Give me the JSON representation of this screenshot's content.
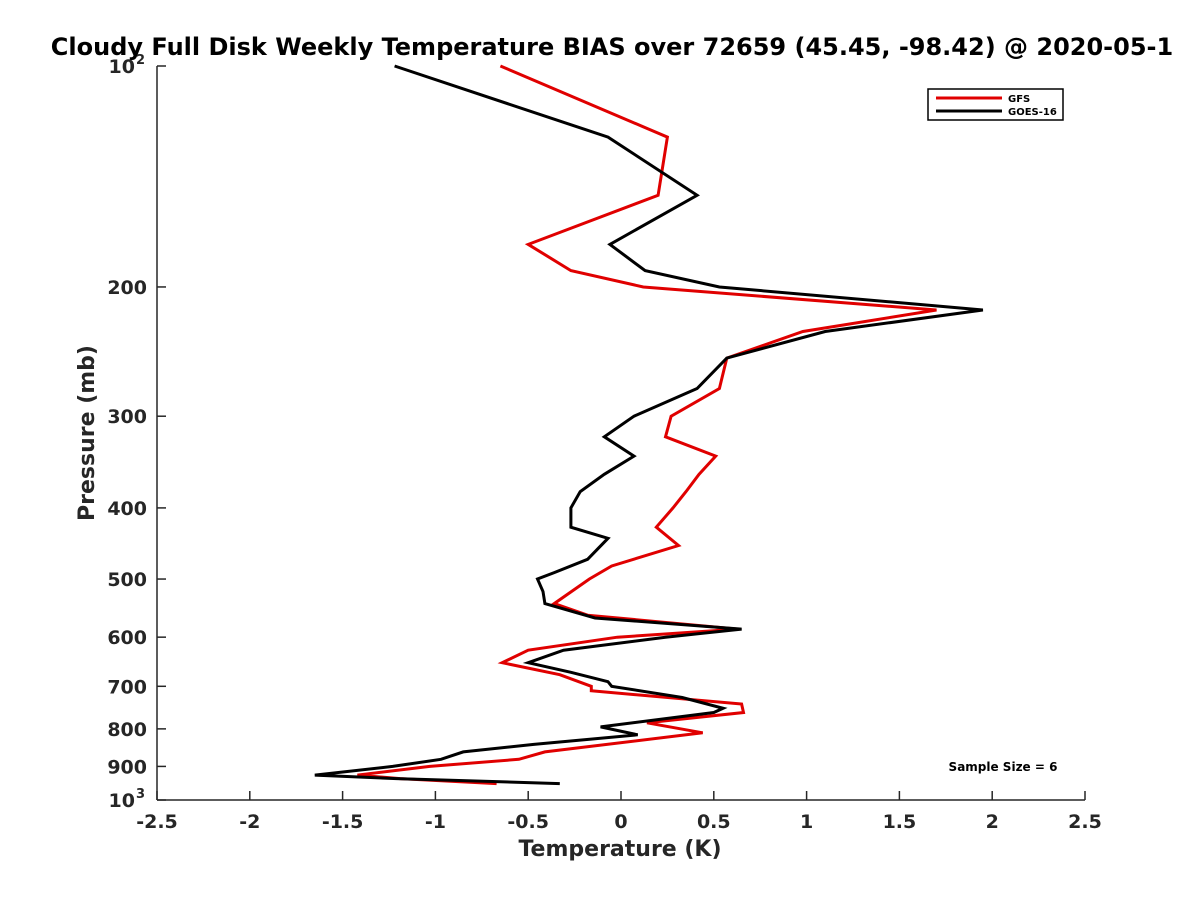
{
  "chart_data": {
    "type": "line",
    "title": "Cloudy Full Disk Weekly Temperature BIAS over 72659 (45.45, -98.42) @ 2020-05-1",
    "xlabel": "Temperature (K)",
    "ylabel": "Pressure (mb)",
    "xlim": [
      -2.5,
      2.5
    ],
    "ylim": [
      100,
      1000
    ],
    "y_scale": "log",
    "y_reversed": true,
    "grid": false,
    "legend_position": "top-right",
    "x_ticks": [
      {
        "value": -2.5,
        "label": "-2.5"
      },
      {
        "value": -2,
        "label": "-2"
      },
      {
        "value": -1.5,
        "label": "-1.5"
      },
      {
        "value": -1,
        "label": "-1"
      },
      {
        "value": -0.5,
        "label": "-0.5"
      },
      {
        "value": 0,
        "label": "0"
      },
      {
        "value": 0.5,
        "label": "0.5"
      },
      {
        "value": 1,
        "label": "1"
      },
      {
        "value": 1.5,
        "label": "1.5"
      },
      {
        "value": 2,
        "label": "2"
      },
      {
        "value": 2.5,
        "label": "2.5"
      }
    ],
    "y_ticks": [
      {
        "value": 100,
        "base": "10",
        "exp": "2"
      },
      {
        "value": 200,
        "label": "200"
      },
      {
        "value": 300,
        "label": "300"
      },
      {
        "value": 400,
        "label": "400"
      },
      {
        "value": 500,
        "label": "500"
      },
      {
        "value": 600,
        "label": "600"
      },
      {
        "value": 700,
        "label": "700"
      },
      {
        "value": 800,
        "label": "800"
      },
      {
        "value": 900,
        "label": "900"
      },
      {
        "value": 1000,
        "base": "10",
        "exp": "3"
      }
    ],
    "annotation": "Sample Size = 6",
    "series": [
      {
        "name": "GFS",
        "color": "#e00000",
        "points": [
          [
            -0.65,
            100
          ],
          [
            0.25,
            125
          ],
          [
            0.2,
            150
          ],
          [
            -0.5,
            175
          ],
          [
            -0.27,
            190
          ],
          [
            0.12,
            200
          ],
          [
            1.7,
            215
          ],
          [
            0.98,
            230
          ],
          [
            0.57,
            250
          ],
          [
            0.53,
            275
          ],
          [
            0.27,
            300
          ],
          [
            0.24,
            320
          ],
          [
            0.51,
            340
          ],
          [
            0.42,
            360
          ],
          [
            0.35,
            380
          ],
          [
            0.28,
            400
          ],
          [
            0.19,
            425
          ],
          [
            0.31,
            450
          ],
          [
            -0.05,
            480
          ],
          [
            -0.17,
            500
          ],
          [
            -0.36,
            540
          ],
          [
            -0.18,
            560
          ],
          [
            0.63,
            585
          ],
          [
            -0.02,
            600
          ],
          [
            -0.5,
            625
          ],
          [
            -0.64,
            650
          ],
          [
            -0.33,
            675
          ],
          [
            -0.16,
            700
          ],
          [
            -0.16,
            710
          ],
          [
            0.65,
            740
          ],
          [
            0.66,
            760
          ],
          [
            0.14,
            785
          ],
          [
            0.44,
            810
          ],
          [
            -0.41,
            860
          ],
          [
            -0.55,
            880
          ],
          [
            -1.03,
            900
          ],
          [
            -1.42,
            925
          ],
          [
            -1.19,
            935
          ],
          [
            -0.67,
            950
          ]
        ]
      },
      {
        "name": "GOES-16",
        "color": "#000000",
        "points": [
          [
            -1.22,
            100
          ],
          [
            -0.07,
            125
          ],
          [
            0.41,
            150
          ],
          [
            -0.06,
            175
          ],
          [
            0.13,
            190
          ],
          [
            0.53,
            200
          ],
          [
            1.95,
            215
          ],
          [
            1.1,
            230
          ],
          [
            0.57,
            250
          ],
          [
            0.41,
            275
          ],
          [
            0.07,
            300
          ],
          [
            -0.09,
            320
          ],
          [
            0.07,
            340
          ],
          [
            -0.09,
            360
          ],
          [
            -0.22,
            380
          ],
          [
            -0.27,
            400
          ],
          [
            -0.27,
            425
          ],
          [
            -0.07,
            440
          ],
          [
            -0.18,
            470
          ],
          [
            -0.36,
            490
          ],
          [
            -0.45,
            500
          ],
          [
            -0.42,
            520
          ],
          [
            -0.41,
            540
          ],
          [
            -0.14,
            565
          ],
          [
            0.65,
            585
          ],
          [
            0.24,
            600
          ],
          [
            -0.31,
            625
          ],
          [
            -0.5,
            650
          ],
          [
            -0.27,
            670
          ],
          [
            -0.07,
            690
          ],
          [
            -0.05,
            700
          ],
          [
            0.33,
            725
          ],
          [
            0.55,
            750
          ],
          [
            0.5,
            760
          ],
          [
            -0.11,
            795
          ],
          [
            0.09,
            815
          ],
          [
            -0.47,
            840
          ],
          [
            -0.85,
            860
          ],
          [
            -0.97,
            880
          ],
          [
            -1.23,
            900
          ],
          [
            -1.65,
            925
          ],
          [
            -1.21,
            935
          ],
          [
            -0.33,
            950
          ]
        ]
      }
    ]
  }
}
